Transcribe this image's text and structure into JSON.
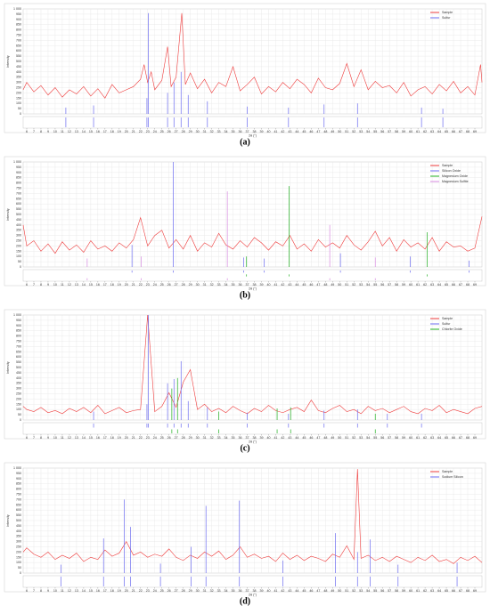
{
  "chart_data": [
    {
      "type": "line",
      "caption": "(a)",
      "y_label": "Intensity",
      "x_label": "2θ (°)",
      "xlim": [
        5.5,
        70
      ],
      "ylim": [
        0,
        1000
      ],
      "xticks": [
        6,
        7,
        8,
        9,
        10,
        11,
        12,
        13,
        14,
        15,
        16,
        17,
        18,
        19,
        20,
        21,
        22,
        23,
        24,
        25,
        26,
        27,
        28,
        29,
        30,
        31,
        32,
        33,
        34,
        35,
        36,
        37,
        38,
        39,
        40,
        41,
        42,
        43,
        44,
        45,
        46,
        47,
        48,
        49,
        50,
        51,
        52,
        53,
        54,
        55,
        56,
        57,
        58,
        59,
        60,
        61,
        62,
        63,
        64,
        65,
        66,
        67,
        68,
        69
      ],
      "yticks": [
        0,
        50,
        100,
        150,
        200,
        250,
        300,
        350,
        400,
        450,
        500,
        550,
        600,
        650,
        700,
        750,
        800,
        850,
        900,
        950,
        {
          "value": 1000,
          "label": "1 000"
        }
      ],
      "grid": true,
      "legend": "upper right",
      "series": [
        {
          "name": "Sample",
          "color": "#ee3b3b",
          "x": [
            5.5,
            6,
            7,
            8,
            9,
            10,
            11,
            12,
            13,
            14,
            15,
            16,
            17,
            18,
            19,
            20,
            21,
            22,
            22.5,
            23,
            23.5,
            24,
            25,
            25.8,
            26.3,
            27,
            27.8,
            28.3,
            29,
            30,
            31,
            32,
            33,
            34,
            35,
            36,
            37,
            38,
            39,
            40,
            41,
            42,
            43,
            44,
            45,
            46,
            47,
            48,
            49,
            50,
            51,
            52,
            53,
            54,
            55,
            56,
            57,
            58,
            59,
            60,
            61,
            62,
            63,
            64,
            65,
            66,
            67,
            68,
            69,
            69.8,
            70
          ],
          "values": [
            230,
            300,
            210,
            270,
            180,
            250,
            160,
            230,
            190,
            260,
            170,
            240,
            150,
            280,
            200,
            230,
            260,
            330,
            470,
            300,
            400,
            230,
            320,
            640,
            260,
            350,
            960,
            280,
            390,
            240,
            330,
            200,
            300,
            260,
            450,
            220,
            280,
            350,
            190,
            260,
            210,
            300,
            240,
            330,
            280,
            200,
            340,
            250,
            230,
            290,
            480,
            260,
            420,
            230,
            310,
            250,
            270,
            200,
            300,
            170,
            230,
            260,
            190,
            280,
            220,
            310,
            200,
            260,
            180,
            470,
            300
          ]
        },
        {
          "name": "Sulfur",
          "color": "#6b6bf0",
          "style": "stick",
          "x": [
            11.5,
            15.4,
            22.9,
            23.1,
            25.8,
            26.7,
            27.7,
            28.7,
            31.4,
            37.0,
            42.8,
            47.8,
            52.5,
            61.5,
            64.5
          ],
          "values": [
            60,
            80,
            150,
            960,
            200,
            300,
            400,
            180,
            120,
            70,
            60,
            90,
            100,
            60,
            50
          ]
        }
      ]
    },
    {
      "type": "line",
      "caption": "(b)",
      "y_label": "Intensity",
      "x_label": "2θ (°)",
      "xlim": [
        5.5,
        70
      ],
      "ylim": [
        0,
        1000
      ],
      "xticks": [
        6,
        7,
        8,
        9,
        10,
        11,
        12,
        13,
        14,
        15,
        16,
        17,
        18,
        19,
        20,
        21,
        22,
        23,
        24,
        25,
        26,
        27,
        28,
        29,
        30,
        31,
        32,
        33,
        34,
        35,
        36,
        37,
        38,
        39,
        40,
        41,
        42,
        43,
        44,
        45,
        46,
        47,
        48,
        49,
        50,
        51,
        52,
        53,
        54,
        55,
        56,
        57,
        58,
        59,
        60,
        61,
        62,
        63,
        64,
        65,
        66,
        67,
        68,
        69
      ],
      "yticks": [
        0,
        50,
        100,
        150,
        200,
        250,
        300,
        350,
        400,
        450,
        500,
        550,
        600,
        650,
        700,
        750,
        800,
        850,
        900,
        950,
        {
          "value": 1000,
          "label": "1 000"
        }
      ],
      "grid": true,
      "legend": "upper right",
      "series": [
        {
          "name": "Sample",
          "color": "#ee3b3b",
          "x": [
            5.5,
            6,
            7,
            8,
            9,
            10,
            11,
            12,
            13,
            14,
            15,
            16,
            17,
            18,
            19,
            20,
            21,
            22,
            23,
            24,
            25,
            26,
            27,
            28,
            29,
            30,
            31,
            32,
            33,
            34,
            35,
            36,
            37,
            38,
            39,
            40,
            41,
            42,
            43,
            44,
            45,
            46,
            47,
            48,
            49,
            50,
            51,
            52,
            53,
            54,
            55,
            56,
            57,
            58,
            59,
            60,
            61,
            62,
            63,
            64,
            65,
            66,
            67,
            68,
            69,
            70
          ],
          "values": [
            400,
            200,
            250,
            150,
            220,
            130,
            240,
            160,
            210,
            140,
            250,
            170,
            200,
            150,
            230,
            180,
            260,
            470,
            200,
            300,
            350,
            180,
            260,
            170,
            300,
            150,
            230,
            190,
            320,
            210,
            170,
            250,
            190,
            280,
            230,
            160,
            240,
            200,
            300,
            170,
            220,
            150,
            260,
            190,
            230,
            180,
            300,
            210,
            160,
            240,
            340,
            200,
            280,
            150,
            260,
            190,
            230,
            170,
            280,
            150,
            240,
            190,
            200,
            150,
            180,
            480
          ]
        },
        {
          "name": "Silicon Oxide",
          "color": "#6b6bf0",
          "style": "stick",
          "x": [
            20.8,
            26.6,
            36.5,
            39.4,
            50.1,
            59.9,
            68.2
          ],
          "values": [
            210,
            1000,
            90,
            80,
            130,
            100,
            60
          ]
        },
        {
          "name": "Magnesium Oxide",
          "color": "#22b022",
          "style": "stick",
          "x": [
            36.9,
            42.9,
            62.3
          ],
          "values": [
            100,
            770,
            330
          ]
        },
        {
          "name": "Magnesium Sulfite",
          "color": "#d78ae0",
          "style": "stick",
          "x": [
            14.5,
            22.1,
            34.2,
            48.6,
            55.0
          ],
          "values": [
            80,
            100,
            720,
            400,
            90
          ]
        }
      ]
    },
    {
      "type": "line",
      "caption": "(c)",
      "y_label": "Intensity",
      "x_label": "2θ (°)",
      "xlim": [
        5.5,
        70
      ],
      "ylim": [
        0,
        1000
      ],
      "xticks": [
        6,
        7,
        8,
        9,
        10,
        11,
        12,
        13,
        14,
        15,
        16,
        17,
        18,
        19,
        20,
        21,
        22,
        23,
        24,
        25,
        26,
        27,
        28,
        29,
        30,
        31,
        32,
        33,
        34,
        35,
        36,
        37,
        38,
        39,
        40,
        41,
        42,
        43,
        44,
        45,
        46,
        47,
        48,
        49,
        50,
        51,
        52,
        53,
        54,
        55,
        56,
        57,
        58,
        59,
        60,
        61,
        62,
        63,
        64,
        65,
        66,
        67,
        68,
        69
      ],
      "yticks": [
        0,
        50,
        100,
        150,
        200,
        250,
        300,
        350,
        400,
        450,
        500,
        550,
        600,
        650,
        700,
        750,
        800,
        850,
        900,
        950,
        {
          "value": 1000,
          "label": "1 000"
        }
      ],
      "grid": true,
      "legend": "upper right",
      "series": [
        {
          "name": "Sample",
          "color": "#ee3b3b",
          "x": [
            5.5,
            6,
            7,
            8,
            9,
            10,
            11,
            12,
            13,
            14,
            15,
            16,
            17,
            18,
            19,
            20,
            21,
            22,
            23,
            24,
            25,
            26,
            27,
            28,
            29,
            30,
            31,
            32,
            33,
            34,
            35,
            36,
            37,
            38,
            39,
            40,
            41,
            42,
            43,
            44,
            45,
            46,
            47,
            48,
            49,
            50,
            51,
            52,
            53,
            54,
            55,
            56,
            57,
            58,
            59,
            60,
            61,
            62,
            63,
            64,
            65,
            66,
            67,
            68,
            69,
            70
          ],
          "values": [
            130,
            100,
            80,
            120,
            70,
            90,
            60,
            110,
            80,
            120,
            70,
            140,
            60,
            90,
            120,
            70,
            90,
            100,
            1000,
            80,
            130,
            260,
            120,
            360,
            480,
            100,
            150,
            80,
            110,
            70,
            130,
            90,
            60,
            110,
            80,
            140,
            90,
            70,
            100,
            120,
            80,
            190,
            90,
            70,
            110,
            140,
            80,
            100,
            60,
            130,
            90,
            110,
            70,
            100,
            130,
            80,
            60,
            110,
            90,
            140,
            70,
            100,
            80,
            60,
            110,
            130
          ]
        },
        {
          "name": "Sulfur",
          "color": "#6b6bf0",
          "style": "stick",
          "x": [
            15.4,
            22.9,
            23.1,
            25.8,
            26.7,
            27.7,
            28.7,
            31.4,
            37.0,
            42.8,
            47.8,
            52.5,
            56.7,
            61.5
          ],
          "values": [
            80,
            150,
            1000,
            350,
            390,
            560,
            180,
            120,
            70,
            60,
            90,
            100,
            60,
            60
          ]
        },
        {
          "name": "Chlorite Oxide",
          "color": "#22b022",
          "style": "stick",
          "x": [
            26.4,
            27.2,
            33.0,
            41.2,
            43.1,
            55.0
          ],
          "values": [
            300,
            400,
            80,
            110,
            120,
            60
          ]
        }
      ]
    },
    {
      "type": "line",
      "caption": "(d)",
      "y_label": "Intensity",
      "x_label": "2θ (°)",
      "xlim": [
        5.5,
        70
      ],
      "ylim": [
        0,
        1000
      ],
      "xticks": [
        6,
        7,
        8,
        9,
        10,
        11,
        12,
        13,
        14,
        15,
        16,
        17,
        18,
        19,
        20,
        21,
        22,
        23,
        24,
        25,
        26,
        27,
        28,
        29,
        30,
        31,
        32,
        33,
        34,
        35,
        36,
        37,
        38,
        39,
        40,
        41,
        42,
        43,
        44,
        45,
        46,
        47,
        48,
        49,
        50,
        51,
        52,
        53,
        54,
        55,
        56,
        57,
        58,
        59,
        60,
        61,
        62,
        63,
        64,
        65,
        66,
        67,
        68,
        69
      ],
      "yticks": [
        0,
        50,
        100,
        150,
        200,
        250,
        300,
        350,
        400,
        450,
        500,
        550,
        600,
        650,
        700,
        750,
        800,
        850,
        900,
        950,
        {
          "value": 1000,
          "label": "1 000"
        }
      ],
      "grid": true,
      "legend": "upper right",
      "series": [
        {
          "name": "Sample",
          "color": "#ee3b3b",
          "x": [
            5.5,
            6,
            7,
            8,
            9,
            10,
            11,
            12,
            13,
            14,
            15,
            16,
            17,
            18,
            19,
            20,
            21,
            22,
            23,
            24,
            25,
            26,
            27,
            28,
            29,
            30,
            31,
            32,
            33,
            34,
            35,
            36,
            37,
            38,
            39,
            40,
            41,
            42,
            43,
            44,
            45,
            46,
            47,
            48,
            49,
            50,
            51,
            52,
            52.5,
            53,
            54,
            55,
            56,
            57,
            58,
            59,
            60,
            61,
            62,
            63,
            64,
            65,
            66,
            67,
            68,
            69,
            70
          ],
          "values": [
            200,
            240,
            180,
            150,
            200,
            130,
            170,
            140,
            190,
            110,
            150,
            130,
            220,
            160,
            190,
            300,
            170,
            200,
            150,
            180,
            160,
            230,
            150,
            120,
            170,
            140,
            200,
            160,
            210,
            130,
            170,
            250,
            150,
            180,
            140,
            160,
            110,
            190,
            130,
            170,
            120,
            160,
            140,
            110,
            180,
            150,
            260,
            130,
            990,
            140,
            170,
            120,
            150,
            110,
            160,
            130,
            100,
            150,
            120,
            170,
            110,
            130,
            90,
            150,
            120,
            160,
            100
          ]
        },
        {
          "name": "Sodium Silicon",
          "color": "#6b6bf0",
          "style": "stick",
          "x": [
            10.8,
            16.8,
            19.7,
            20.6,
            24.8,
            29.1,
            31.2,
            35.9,
            42.0,
            49.4,
            52.5,
            54.3,
            58.2,
            66.5
          ],
          "values": [
            80,
            330,
            700,
            440,
            90,
            250,
            640,
            690,
            120,
            380,
            200,
            320,
            80,
            100
          ]
        }
      ]
    }
  ]
}
